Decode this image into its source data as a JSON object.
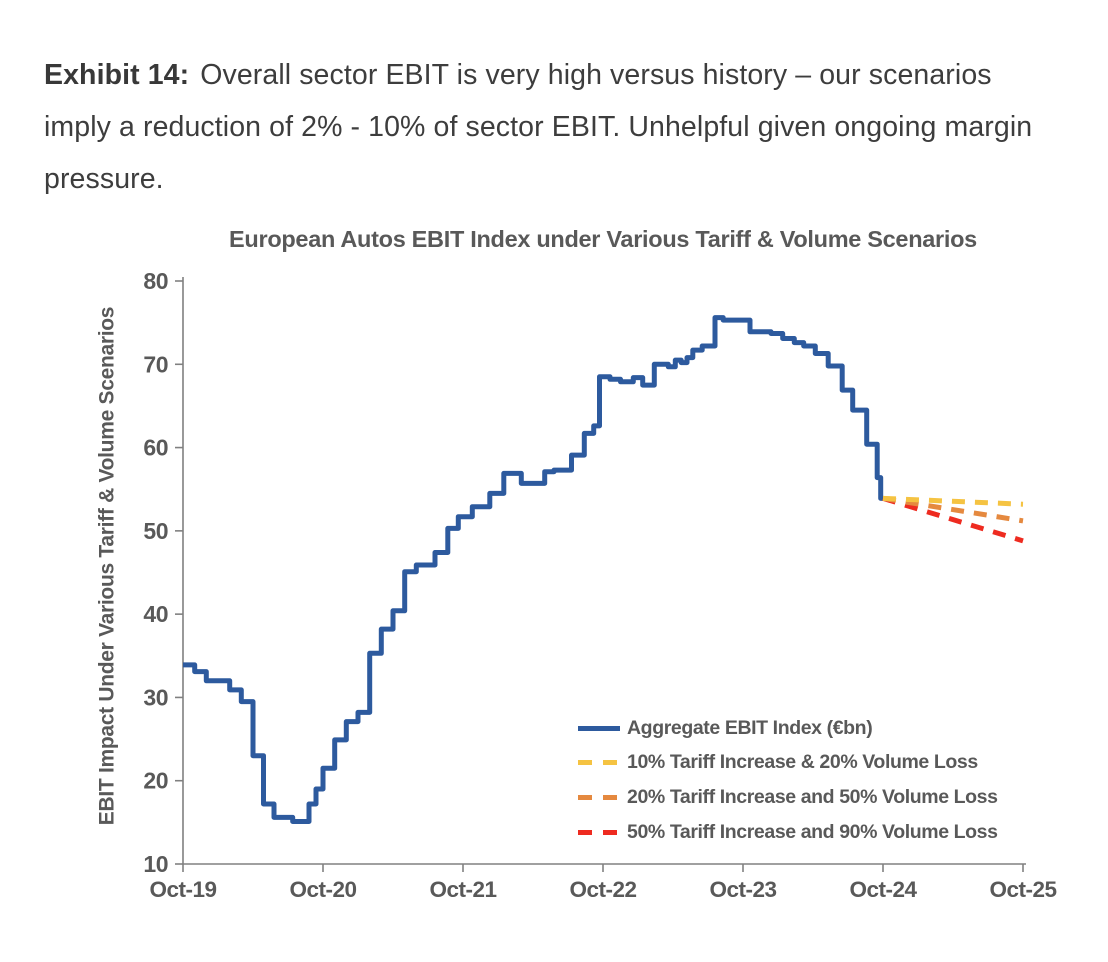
{
  "header": {
    "exhibit_label": "Exhibit 14:",
    "text_rest": "Overall sector EBIT is very high versus history – our scenarios imply a reduction of 2% - 10% of sector EBIT. Unhelpful given ongoing margin pressure."
  },
  "colors": {
    "aggregate_blue": "#2d5a9e",
    "scenario_yellow": "#f5c342",
    "scenario_orange": "#e5893f",
    "scenario_red": "#ee2b20",
    "axis_gray": "#808080",
    "chart_text_gray": "#595959",
    "heading_gray": "#3d3d3d"
  },
  "chart_data": {
    "type": "line",
    "title": "European Autos EBIT Index under Various Tariff & Volume Scenarios",
    "ylabel": "EBIT Impact Under Various Tariff & Volume Scenarios",
    "xlabel": "",
    "ylim": [
      10,
      80
    ],
    "yticks": [
      80,
      70,
      60,
      50,
      40,
      30,
      20,
      10
    ],
    "xticks": [
      "Oct-19",
      "Oct-20",
      "Oct-21",
      "Oct-22",
      "Oct-23",
      "Oct-24",
      "Oct-25"
    ],
    "x_unit": "months since Oct-2019",
    "x_range_months": [
      0,
      72
    ],
    "grid": false,
    "legend_position": "inside lower right",
    "series": [
      {
        "name": "Aggregate EBIT Index (€bn)",
        "style": "solid",
        "step": true,
        "color_key": "aggregate_blue",
        "points": [
          [
            0,
            33.9
          ],
          [
            1,
            33.1
          ],
          [
            2,
            32.0
          ],
          [
            4,
            30.9
          ],
          [
            5,
            29.5
          ],
          [
            6,
            23.0
          ],
          [
            6.9,
            17.2
          ],
          [
            7.8,
            15.6
          ],
          [
            9.4,
            15.1
          ],
          [
            10.8,
            17.2
          ],
          [
            11.4,
            19.0
          ],
          [
            12,
            21.5
          ],
          [
            13,
            24.9
          ],
          [
            14,
            27.1
          ],
          [
            15,
            28.2
          ],
          [
            16,
            35.3
          ],
          [
            17,
            38.2
          ],
          [
            18,
            40.4
          ],
          [
            19,
            45.1
          ],
          [
            20,
            45.9
          ],
          [
            21.6,
            47.4
          ],
          [
            22.7,
            50.3
          ],
          [
            23.6,
            51.7
          ],
          [
            24.8,
            52.9
          ],
          [
            26.3,
            54.5
          ],
          [
            27.5,
            56.9
          ],
          [
            29,
            55.7
          ],
          [
            31,
            57.1
          ],
          [
            31.8,
            57.3
          ],
          [
            33.3,
            59.1
          ],
          [
            34.4,
            61.7
          ],
          [
            35.2,
            62.6
          ],
          [
            35.7,
            68.5
          ],
          [
            36.6,
            68.2
          ],
          [
            37.5,
            67.9
          ],
          [
            38.6,
            68.4
          ],
          [
            39.4,
            67.5
          ],
          [
            40.4,
            70.0
          ],
          [
            41.6,
            69.7
          ],
          [
            42.2,
            70.5
          ],
          [
            42.7,
            70.2
          ],
          [
            43.2,
            70.8
          ],
          [
            43.7,
            71.7
          ],
          [
            44.5,
            72.2
          ],
          [
            45.6,
            75.6
          ],
          [
            46.3,
            75.3
          ],
          [
            48.6,
            73.9
          ],
          [
            50.4,
            73.7
          ],
          [
            51.4,
            73.1
          ],
          [
            52.4,
            72.6
          ],
          [
            53.2,
            72.2
          ],
          [
            54.2,
            71.3
          ],
          [
            55.3,
            69.8
          ],
          [
            56.5,
            66.9
          ],
          [
            57.4,
            64.5
          ],
          [
            58.6,
            60.4
          ],
          [
            59.5,
            56.4
          ],
          [
            59.8,
            53.9
          ],
          [
            60,
            53.9
          ]
        ]
      },
      {
        "name": "10% Tariff Increase & 20% Volume Loss",
        "style": "dashed",
        "step": false,
        "color_key": "scenario_yellow",
        "points": [
          [
            60,
            53.9
          ],
          [
            72,
            53.2
          ]
        ]
      },
      {
        "name": "20% Tariff Increase and 50% Volume Loss",
        "style": "dashed",
        "step": false,
        "color_key": "scenario_orange",
        "points": [
          [
            60,
            53.9
          ],
          [
            72,
            51.2
          ]
        ]
      },
      {
        "name": "50% Tariff Increase and 90% Volume Loss",
        "style": "dashed",
        "step": false,
        "color_key": "scenario_red",
        "points": [
          [
            60,
            53.9
          ],
          [
            72,
            48.8
          ]
        ]
      }
    ]
  }
}
